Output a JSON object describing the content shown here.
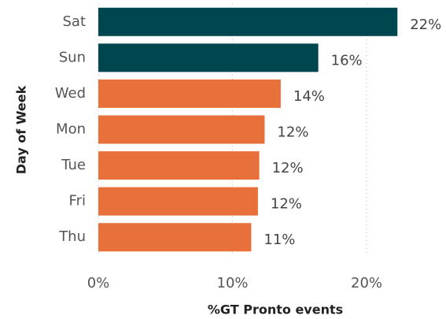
{
  "chart_data": {
    "type": "hbar",
    "categories": [
      "Sat",
      "Sun",
      "Wed",
      "Mon",
      "Tue",
      "Fri",
      "Thu"
    ],
    "values": [
      22.3,
      16.4,
      13.6,
      12.4,
      12.0,
      11.9,
      11.4
    ],
    "value_labels": [
      "22%",
      "16%",
      "14%",
      "12%",
      "12%",
      "12%",
      "11%"
    ],
    "colors": [
      "#00464f",
      "#00464f",
      "#e8703a",
      "#e8703a",
      "#e8703a",
      "#e8703a",
      "#e8703a"
    ],
    "xlim": [
      0,
      25.5
    ],
    "xticks": [
      {
        "value": 0,
        "label": "0%"
      },
      {
        "value": 10,
        "label": "10%"
      },
      {
        "value": 20,
        "label": "20%"
      }
    ],
    "xlabel": "%GT Pronto events",
    "ylabel": "Day of Week",
    "grid": true
  }
}
